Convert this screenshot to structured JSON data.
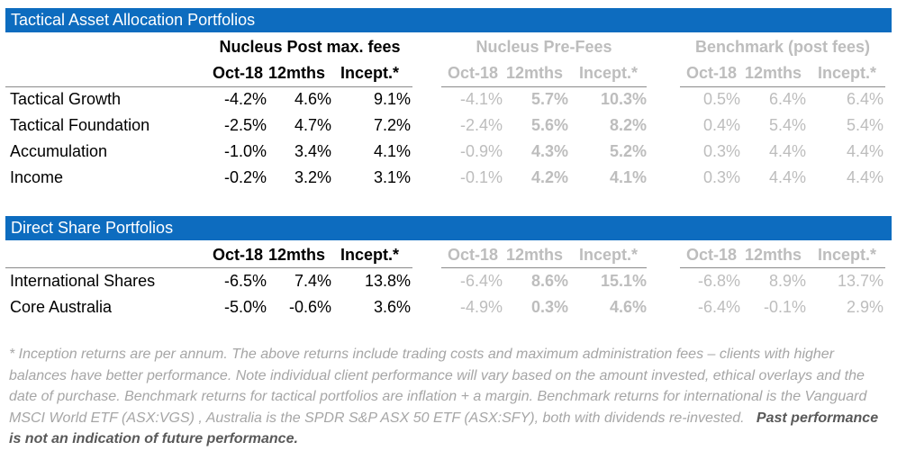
{
  "sections": [
    {
      "title": "Tactical Asset Allocation Portfolios",
      "groups": [
        "Nucleus Post max. fees",
        "Nucleus Pre-Fees",
        "Benchmark (post fees)"
      ],
      "columns": [
        "Oct-18",
        "12mths",
        "Incept.*"
      ],
      "rows": [
        {
          "name": "Tactical Growth",
          "post": [
            "-4.2%",
            "4.6%",
            "9.1%"
          ],
          "pre": [
            "-4.1%",
            "5.7%",
            "10.3%"
          ],
          "bench": [
            "0.5%",
            "6.4%",
            "6.4%"
          ]
        },
        {
          "name": "Tactical Foundation",
          "post": [
            "-2.5%",
            "4.7%",
            "7.2%"
          ],
          "pre": [
            "-2.4%",
            "5.6%",
            "8.2%"
          ],
          "bench": [
            "0.4%",
            "5.4%",
            "5.4%"
          ]
        },
        {
          "name": "Accumulation",
          "post": [
            "-1.0%",
            "3.4%",
            "4.1%"
          ],
          "pre": [
            "-0.9%",
            "4.3%",
            "5.2%"
          ],
          "bench": [
            "0.3%",
            "4.4%",
            "4.4%"
          ]
        },
        {
          "name": "Income",
          "post": [
            "-0.2%",
            "3.2%",
            "3.1%"
          ],
          "pre": [
            "-0.1%",
            "4.2%",
            "4.1%"
          ],
          "bench": [
            "0.3%",
            "4.4%",
            "4.4%"
          ]
        }
      ]
    },
    {
      "title": "Direct Share Portfolios",
      "columns": [
        "Oct-18",
        "12mths",
        "Incept.*"
      ],
      "rows": [
        {
          "name": "International Shares",
          "post": [
            "-6.5%",
            "7.4%",
            "13.8%"
          ],
          "pre": [
            "-6.4%",
            "8.6%",
            "15.1%"
          ],
          "bench": [
            "-6.8%",
            "8.9%",
            "13.7%"
          ]
        },
        {
          "name": "Core Australia",
          "post": [
            "-5.0%",
            "-0.6%",
            "3.6%"
          ],
          "pre": [
            "-4.9%",
            "0.3%",
            "4.6%"
          ],
          "bench": [
            "-6.4%",
            "-0.1%",
            "2.9%"
          ]
        }
      ]
    }
  ],
  "footnote": "* Inception returns are per annum. The above returns include trading costs and maximum administration fees  – clients with higher balances have better performance. Note individual client performance will vary based on the amount invested, ethical overlays and the date of purchase. Benchmark returns for tactical portfolios are inflation + a margin. Benchmark returns for international is the Vanguard MSCI World ETF (ASX:VGS) , Australia is the SPDR S&P ASX 50 ETF (ASX:SFY), both with dividends re-invested.",
  "footnote_emphasis": "Past performance is not an indication of future performance."
}
